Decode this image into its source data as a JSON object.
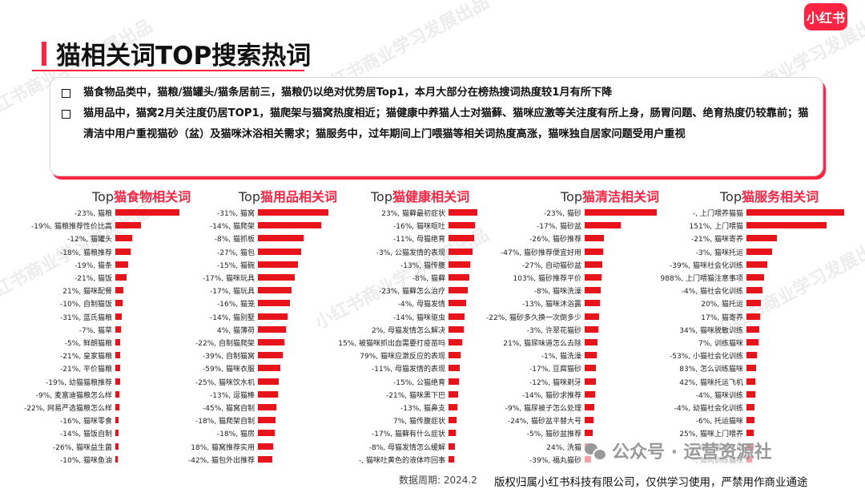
{
  "brand": {
    "logo_text": "小红书",
    "accent": "#ff2442",
    "bar_color": "#e8141b"
  },
  "watermark_text": "小红书商业学习发展出品",
  "page_title": "猫相关词TOP搜索热词",
  "summary": {
    "bullets": [
      "猫食物品类中，猫粮/猫罐头/猫条居前三，猫粮仍以绝对优势居Top1，本月大部分在榜热搜词热度较1月有所下降",
      "猫用品中，猫窝2月关注度仍居TOP1，猫爬架与猫窝热度相近；猫健康中养猫人士对猫藓、猫咪应激等关注度有所上身，肠胃问题、绝育热度仍较靠前；猫清洁中用户重视猫砂（盆）及猫咪沐浴相关需求；猫服务中，过年期间上门喂猫等相关词热度高涨，猫咪独自居家问题受用户重视"
    ]
  },
  "chart_data": [
    {
      "type": "bar",
      "title_prefix": "Top",
      "title": "猫食物相关词",
      "categories": [
        "-23%, 猫粮",
        "-19%, 猫粮推荐性价比高",
        "-12%, 猫罐头",
        "-18%, 猫粮推荐",
        "-19%, 猫条",
        "-21%, 猫饭",
        "21%, 猫咪配餐",
        "-10%, 自制猫饭",
        "-31%, 蓝氏猫粮",
        "-7%, 猫草",
        "-5%, 鲜朗猫粮",
        "-21%, 皇家猫粮",
        "-21%, 平价猫粮",
        "-19%, 幼猫猫粮推荐",
        "-9%, 麦富迪猫粮怎么样",
        "-22%, 网易严选猫粮怎么样",
        "-16%, 猫咪零食",
        "-14%, 猫饭自制",
        "-26%, 猫咪益生菌",
        "-10%, 猫咪鱼油"
      ],
      "values": [
        100,
        40,
        26,
        24,
        20,
        17,
        12,
        11,
        10,
        9,
        8,
        8,
        7,
        7,
        6,
        6,
        5,
        5,
        5,
        4
      ]
    },
    {
      "type": "bar",
      "title_prefix": "Top",
      "title": "猫用品相关词",
      "categories": [
        "-31%, 猫窝",
        "-14%, 猫爬架",
        "-8%, 猫抓板",
        "-27%, 猫包",
        "-15%, 猫碗",
        "-17%, 猫咪玩具",
        "-17%, 猫玩具",
        "-16%, 猫笼",
        "-14%, 猫别墅",
        "4%, 猫薄荷",
        "-22%, 自制猫爬架",
        "-39%, 自制猫窝",
        "-59%, 猫咪衣服",
        "-25%, 猫咪饮水机",
        "-13%, 逗猫棒",
        "-45%, 猫窝自制",
        "-18%, 猫爬架自制",
        "-18%, 猫房",
        "18%, 猫窝推荐实用",
        "-42%, 猫包外出推荐"
      ],
      "values": [
        100,
        90,
        65,
        61,
        57,
        52,
        48,
        45,
        42,
        40,
        37,
        35,
        32,
        30,
        28,
        26,
        25,
        24,
        22,
        20
      ]
    },
    {
      "type": "bar",
      "title_prefix": "Top",
      "title": "猫健康相关词",
      "categories": [
        "23%, 猫藓最初症状",
        "-16%, 猫咪呕吐",
        "-11%, 母猫绝育",
        "-3%, 公猫发情的表现",
        "-13%, 猫传腹",
        "-8%, 猫藓",
        "-23%, 猫藓怎么治疗",
        "-4%, 母猫发情",
        "-14%, 猫咪驱虫",
        "2%, 母猫发情怎么解决",
        "15%, 被猫咪抓出血需要打疫苗吗",
        "79%, 猫咪应激反应的表现",
        "-11%, 母猫发情的表现",
        "-15%, 公猫绝育",
        "-21%, 猫咪黑下巴",
        "-13%, 猫鼻支",
        "7%, 猫传腹症状",
        "-17%, 猫藓有什么症状",
        "-8%, 母猫发情怎么缓解",
        "-, 猫咪吐黄色的液体咋回事"
      ],
      "values": [
        100,
        93,
        88,
        82,
        76,
        71,
        66,
        61,
        56,
        52,
        47,
        43,
        40,
        37,
        34,
        31,
        28,
        25,
        22,
        20
      ]
    },
    {
      "type": "bar",
      "title_prefix": "Top",
      "title": "猫清洁相关词",
      "categories": [
        "-23%, 猫砂",
        "-17%, 猫砂盆",
        "-26%, 猫砂推荐",
        "-47%, 猫砂推荐便宜好用",
        "-27%, 自动猫砂盆",
        "103%, 猫砂推荐平价",
        "-8%, 猫咪洗澡",
        "-13%, 猫咪沐浴露",
        "-22%, 猫砂多久换一次倒多少",
        "-3%, 许翠花猫砂",
        "21%, 猫尿味道怎么去除",
        "-1%, 猫洗澡",
        "-17%, 豆腐猫砂",
        "-12%, 猫咪剃牙",
        "-14%, 猫砂求推荐",
        "-9%, 猫尿被子怎么处理",
        "-24%, 猫砂盆平替大号",
        "-5%, 猫砂盆推荐",
        "24%, 洗猫",
        "-39%, 福丸猫砂"
      ],
      "values": [
        100,
        50,
        27,
        25,
        24,
        23,
        22,
        21,
        20,
        19,
        18,
        17,
        16,
        15,
        14,
        13,
        12,
        11,
        10,
        9
      ]
    },
    {
      "type": "bar",
      "title_prefix": "Top",
      "title": "猫服务相关词",
      "categories": [
        "-, 上门喂养猫猫",
        "151%, 上门喂猫",
        "-21%, 猫咪寄养",
        "-3%, 猫咪托运",
        "-39%, 猫咪社会化训练",
        "988%, 上门喂猫注意事项",
        "-4%, 猫社会化训练",
        "20%, 猫托运",
        "17%, 猫寄养",
        "34%, 猫咪脱敏训练",
        "7%, 训练猫咪",
        "-53%, 小猫社会化训练",
        "83%, 怎么训练猫咪",
        "42%, 猫咪托运飞机",
        "-4%, 猫咪训练",
        "-4%, 幼猫社会化训练",
        "-6%, 托运猫咪",
        "25%, 猫咪上门喂养",
        "6%, 猫寄生虫",
        "-, 如何训练猫咪"
      ],
      "values": [
        100,
        82,
        31,
        26,
        21,
        18,
        16,
        15,
        14,
        13,
        12,
        11,
        10,
        9,
        9,
        8,
        8,
        7,
        7,
        6
      ]
    }
  ],
  "footer": {
    "date_label": "数据周期: 2024.2",
    "copyright": "版权归属小红书科技有限公司，仅供学习使用，严禁用作商业通途",
    "wechat_label": "公众号 · 运营资源社"
  }
}
